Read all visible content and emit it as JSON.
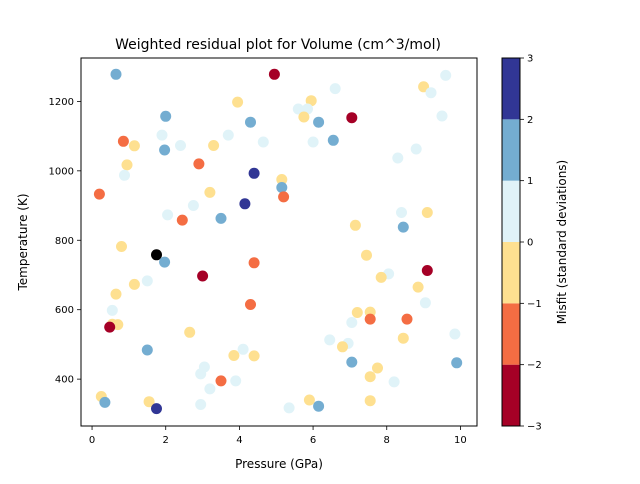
{
  "chart_data": {
    "type": "scatter",
    "title": "Weighted residual plot for Volume (cm^3/mol)",
    "xlabel": "Pressure (GPa)",
    "ylabel": "Temperature (K)",
    "xlim": [
      -0.3,
      10.45
    ],
    "ylim": [
      265,
      1325
    ],
    "xticks": [
      0,
      2,
      4,
      6,
      8,
      10
    ],
    "yticks": [
      400,
      600,
      800,
      1000,
      1200
    ],
    "grid": false,
    "colorbar": {
      "label": "Misfit (standard deviations)",
      "range": [
        -3,
        3
      ],
      "ticks": [
        -3,
        -2,
        -1,
        0,
        1,
        2,
        3
      ],
      "bins": [
        {
          "from": -3,
          "to": -2,
          "color": "#a50026"
        },
        {
          "from": -2,
          "to": -1,
          "color": "#f46d43"
        },
        {
          "from": -1,
          "to": 0,
          "color": "#fee090"
        },
        {
          "from": 0,
          "to": 1,
          "color": "#e0f3f8"
        },
        {
          "from": 1,
          "to": 2,
          "color": "#74add1"
        },
        {
          "from": 2,
          "to": 3,
          "color": "#313695"
        }
      ]
    },
    "points": [
      {
        "x": 0.65,
        "y": 1278,
        "misfit": 1.5
      },
      {
        "x": 4.95,
        "y": 1278,
        "misfit": -2.5
      },
      {
        "x": 9.0,
        "y": 1242,
        "misfit": -0.5
      },
      {
        "x": 9.6,
        "y": 1275,
        "misfit": 0.5
      },
      {
        "x": 9.2,
        "y": 1225,
        "misfit": 0.5
      },
      {
        "x": 6.6,
        "y": 1237,
        "misfit": 0.5
      },
      {
        "x": 3.95,
        "y": 1198,
        "misfit": -0.5
      },
      {
        "x": 5.95,
        "y": 1202,
        "misfit": -0.5
      },
      {
        "x": 5.6,
        "y": 1178,
        "misfit": 0.5
      },
      {
        "x": 5.85,
        "y": 1178,
        "misfit": 0.5
      },
      {
        "x": 7.05,
        "y": 1153,
        "misfit": -2.5
      },
      {
        "x": 2.0,
        "y": 1157,
        "misfit": 1.5
      },
      {
        "x": 5.75,
        "y": 1155,
        "misfit": -0.5
      },
      {
        "x": 9.5,
        "y": 1158,
        "misfit": 0.5
      },
      {
        "x": 4.3,
        "y": 1140,
        "misfit": 1.5
      },
      {
        "x": 6.15,
        "y": 1140,
        "misfit": 1.5
      },
      {
        "x": 1.9,
        "y": 1103,
        "misfit": 0.5
      },
      {
        "x": 3.7,
        "y": 1103,
        "misfit": 0.5
      },
      {
        "x": 0.85,
        "y": 1085,
        "misfit": -1.5
      },
      {
        "x": 6.55,
        "y": 1088,
        "misfit": 1.5
      },
      {
        "x": 6.0,
        "y": 1083,
        "misfit": 0.5
      },
      {
        "x": 4.65,
        "y": 1083,
        "misfit": 0.5
      },
      {
        "x": 1.15,
        "y": 1072,
        "misfit": -0.5
      },
      {
        "x": 2.4,
        "y": 1073,
        "misfit": 0.5
      },
      {
        "x": 3.3,
        "y": 1073,
        "misfit": -0.5
      },
      {
        "x": 8.8,
        "y": 1063,
        "misfit": 0.5
      },
      {
        "x": 1.97,
        "y": 1060,
        "misfit": 1.5
      },
      {
        "x": 8.3,
        "y": 1037,
        "misfit": 0.5
      },
      {
        "x": 2.9,
        "y": 1020,
        "misfit": -1.5
      },
      {
        "x": 0.95,
        "y": 1017,
        "misfit": -0.5
      },
      {
        "x": 4.4,
        "y": 993,
        "misfit": 2.5
      },
      {
        "x": 0.88,
        "y": 987,
        "misfit": 0.5
      },
      {
        "x": 5.15,
        "y": 975,
        "misfit": -0.5
      },
      {
        "x": 5.15,
        "y": 952,
        "misfit": 1.5
      },
      {
        "x": 3.2,
        "y": 938,
        "misfit": -0.5
      },
      {
        "x": 0.2,
        "y": 933,
        "misfit": -1.5
      },
      {
        "x": 5.2,
        "y": 925,
        "misfit": -1.5
      },
      {
        "x": 4.15,
        "y": 905,
        "misfit": 2.5
      },
      {
        "x": 2.75,
        "y": 900,
        "misfit": 0.5
      },
      {
        "x": 9.1,
        "y": 880,
        "misfit": -0.5
      },
      {
        "x": 8.4,
        "y": 880,
        "misfit": 0.5
      },
      {
        "x": 2.05,
        "y": 873,
        "misfit": 0.5
      },
      {
        "x": 3.5,
        "y": 863,
        "misfit": 1.5
      },
      {
        "x": 2.45,
        "y": 858,
        "misfit": -1.5
      },
      {
        "x": 7.15,
        "y": 843,
        "misfit": -0.5
      },
      {
        "x": 8.45,
        "y": 838,
        "misfit": 1.5
      },
      {
        "x": 0.8,
        "y": 782,
        "misfit": -0.5
      },
      {
        "x": 1.75,
        "y": 758,
        "misfit": -3.5
      },
      {
        "x": 7.45,
        "y": 757,
        "misfit": -0.5
      },
      {
        "x": 1.97,
        "y": 737,
        "misfit": 1.5
      },
      {
        "x": 4.4,
        "y": 735,
        "misfit": -1.5
      },
      {
        "x": 9.1,
        "y": 713,
        "misfit": -2.5
      },
      {
        "x": 8.05,
        "y": 703,
        "misfit": 0.5
      },
      {
        "x": 3.0,
        "y": 697,
        "misfit": -2.5
      },
      {
        "x": 7.85,
        "y": 693,
        "misfit": -0.5
      },
      {
        "x": 1.5,
        "y": 683,
        "misfit": 0.5
      },
      {
        "x": 1.15,
        "y": 673,
        "misfit": -0.5
      },
      {
        "x": 8.85,
        "y": 665,
        "misfit": -0.5
      },
      {
        "x": 0.65,
        "y": 645,
        "misfit": -0.5
      },
      {
        "x": 9.05,
        "y": 620,
        "misfit": 0.5
      },
      {
        "x": 4.3,
        "y": 615,
        "misfit": -1.5
      },
      {
        "x": 0.55,
        "y": 598,
        "misfit": 0.5
      },
      {
        "x": 7.2,
        "y": 592,
        "misfit": -0.5
      },
      {
        "x": 7.55,
        "y": 593,
        "misfit": -0.5
      },
      {
        "x": 7.55,
        "y": 573,
        "misfit": -1.5
      },
      {
        "x": 8.55,
        "y": 573,
        "misfit": -1.5
      },
      {
        "x": 7.05,
        "y": 563,
        "misfit": 0.5
      },
      {
        "x": 0.55,
        "y": 558,
        "misfit": -0.5
      },
      {
        "x": 0.7,
        "y": 557,
        "misfit": -0.5
      },
      {
        "x": 0.48,
        "y": 550,
        "misfit": -2.5
      },
      {
        "x": 2.65,
        "y": 535,
        "misfit": -0.5
      },
      {
        "x": 9.85,
        "y": 530,
        "misfit": 0.5
      },
      {
        "x": 8.45,
        "y": 518,
        "misfit": -0.5
      },
      {
        "x": 6.45,
        "y": 513,
        "misfit": 0.5
      },
      {
        "x": 6.95,
        "y": 503,
        "misfit": 0.5
      },
      {
        "x": 6.8,
        "y": 493,
        "misfit": -0.5
      },
      {
        "x": 1.5,
        "y": 484,
        "misfit": 1.5
      },
      {
        "x": 4.1,
        "y": 486,
        "misfit": 0.5
      },
      {
        "x": 3.85,
        "y": 468,
        "misfit": -0.5
      },
      {
        "x": 4.4,
        "y": 467,
        "misfit": -0.5
      },
      {
        "x": 7.05,
        "y": 449,
        "misfit": 1.5
      },
      {
        "x": 9.9,
        "y": 447,
        "misfit": 1.5
      },
      {
        "x": 3.05,
        "y": 435,
        "misfit": 0.5
      },
      {
        "x": 7.75,
        "y": 432,
        "misfit": -0.5
      },
      {
        "x": 2.95,
        "y": 415,
        "misfit": 0.5
      },
      {
        "x": 7.55,
        "y": 407,
        "misfit": -0.5
      },
      {
        "x": 3.5,
        "y": 395,
        "misfit": -1.5
      },
      {
        "x": 3.9,
        "y": 395,
        "misfit": 0.5
      },
      {
        "x": 8.2,
        "y": 392,
        "misfit": 0.5
      },
      {
        "x": 3.2,
        "y": 372,
        "misfit": 0.5
      },
      {
        "x": 0.25,
        "y": 350,
        "misfit": -0.5
      },
      {
        "x": 5.9,
        "y": 340,
        "misfit": -0.5
      },
      {
        "x": 7.55,
        "y": 338,
        "misfit": -0.5
      },
      {
        "x": 1.55,
        "y": 335,
        "misfit": -0.5
      },
      {
        "x": 0.35,
        "y": 333,
        "misfit": 1.5
      },
      {
        "x": 2.95,
        "y": 327,
        "misfit": 0.5
      },
      {
        "x": 6.15,
        "y": 322,
        "misfit": 1.5
      },
      {
        "x": 5.35,
        "y": 317,
        "misfit": 0.5
      },
      {
        "x": 1.75,
        "y": 315,
        "misfit": 2.5
      }
    ]
  }
}
